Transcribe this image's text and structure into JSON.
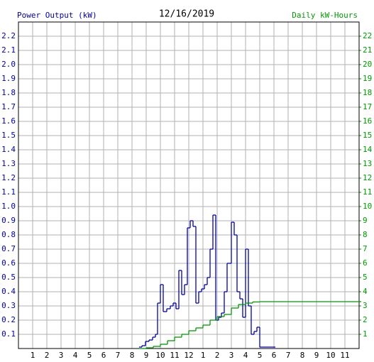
{
  "chart_data": {
    "type": "line",
    "title": "12/16/2019",
    "y_label": "Power Output (kW)",
    "y2_label": "Daily kW-Hours",
    "xlim": [
      0,
      24
    ],
    "xticks": [
      1,
      2,
      3,
      4,
      5,
      6,
      7,
      8,
      9,
      10,
      11,
      12,
      {
        "value": 13,
        "label": "1"
      },
      {
        "value": 14,
        "label": "2"
      },
      {
        "value": 15,
        "label": "3"
      },
      {
        "value": 16,
        "label": "4"
      },
      {
        "value": 17,
        "label": "5"
      },
      {
        "value": 18,
        "label": "6"
      },
      {
        "value": 19,
        "label": "7"
      },
      {
        "value": 20,
        "label": "8"
      },
      {
        "value": 21,
        "label": "9"
      },
      {
        "value": 22,
        "label": "10"
      },
      {
        "value": 23,
        "label": "11"
      }
    ],
    "ylim": [
      0,
      2.3
    ],
    "yticks": [
      0.1,
      0.2,
      0.3,
      0.4,
      0.5,
      0.6,
      0.7,
      0.8,
      0.9,
      {
        "value": 1,
        "label": "1.0"
      },
      1.1,
      1.2,
      1.3,
      1.4,
      1.5,
      1.6,
      1.7,
      1.8,
      1.9,
      {
        "value": 2,
        "label": "2.0"
      },
      2.1,
      2.2
    ],
    "y2lim": [
      0,
      23
    ],
    "y2ticks": [
      1,
      2,
      3,
      4,
      5,
      6,
      7,
      8,
      9,
      10,
      11,
      12,
      13,
      14,
      15,
      16,
      17,
      18,
      19,
      20,
      21,
      22
    ],
    "grid": true,
    "series": [
      {
        "color": "#0000aa",
        "x": [
          8.5,
          8.7,
          8.95,
          9.2,
          9.45,
          9.65,
          9.8,
          10.0,
          10.2,
          10.45,
          10.7,
          10.9,
          11.1,
          11.3,
          11.5,
          11.7,
          11.9,
          12.1,
          12.3,
          12.5,
          12.7,
          12.9,
          13.1,
          13.3,
          13.5,
          13.7,
          13.9,
          14.1,
          14.3,
          14.5,
          14.7,
          15.0,
          15.2,
          15.4,
          15.6,
          15.8,
          16.0,
          16.2,
          16.4,
          16.6,
          16.8,
          17.0,
          17.95
        ],
        "values": [
          0.01,
          0.02,
          0.05,
          0.06,
          0.08,
          0.1,
          0.32,
          0.45,
          0.26,
          0.28,
          0.3,
          0.32,
          0.28,
          0.55,
          0.38,
          0.45,
          0.85,
          0.9,
          0.86,
          0.32,
          0.4,
          0.42,
          0.45,
          0.5,
          0.7,
          0.94,
          0.2,
          0.22,
          0.25,
          0.4,
          0.6,
          0.89,
          0.8,
          0.4,
          0.35,
          0.22,
          0.7,
          0.3,
          0.1,
          0.12,
          0.15,
          0.01,
          0.01
        ]
      },
      {
        "color": "#009900",
        "axis": "y2",
        "x": [
          8.5,
          9.0,
          9.5,
          10.0,
          10.5,
          11.0,
          11.5,
          12.0,
          12.5,
          13.0,
          13.5,
          14.0,
          14.5,
          15.0,
          15.5,
          16.0,
          16.5,
          17.0,
          24.0
        ],
        "values": [
          0,
          0.05,
          0.15,
          0.3,
          0.55,
          0.8,
          1.0,
          1.25,
          1.45,
          1.65,
          2.0,
          2.25,
          2.4,
          2.85,
          3.1,
          3.2,
          3.28,
          3.3,
          3.3
        ]
      }
    ]
  }
}
